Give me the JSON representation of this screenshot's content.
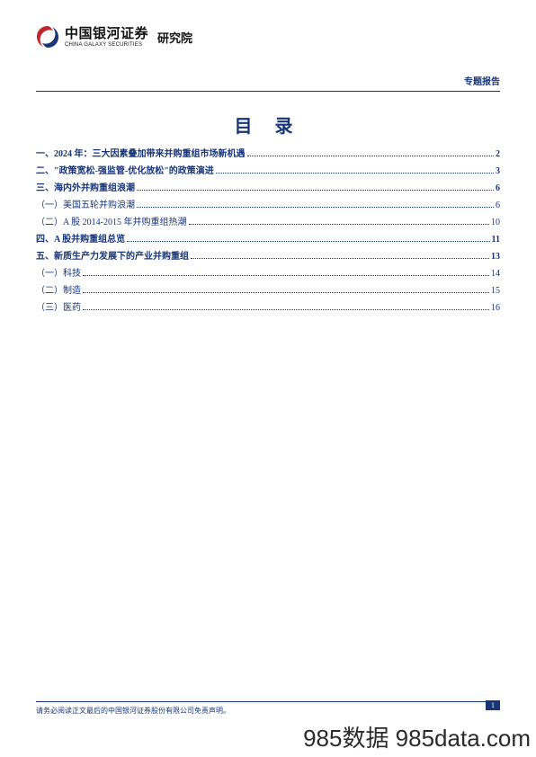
{
  "header": {
    "logo_cn": "中国银河证券",
    "logo_en": "CHINA GALAXY SECURITIES",
    "institute": "研究院",
    "report_type": "专题报告"
  },
  "toc": {
    "title": "目 录",
    "entries": [
      {
        "level": 1,
        "label": "一、2024 年：三大因素叠加带来并购重组市场新机遇",
        "page": "2"
      },
      {
        "level": 1,
        "label": "二、\"政策宽松-强监管-优化放松\"的政策演进",
        "page": "3"
      },
      {
        "level": 1,
        "label": "三、海内外并购重组浪潮",
        "page": "6"
      },
      {
        "level": 2,
        "label": "（一）美国五轮并购浪潮",
        "page": "6"
      },
      {
        "level": 2,
        "label": "（二）A 股 2014-2015 年并购重组热潮",
        "page": "10"
      },
      {
        "level": 1,
        "label": "四、A 股并购重组总览",
        "page": "11"
      },
      {
        "level": 1,
        "label": "五、新质生产力发展下的产业并购重组",
        "page": "13"
      },
      {
        "level": 2,
        "label": "（一）科技",
        "page": "14"
      },
      {
        "level": 2,
        "label": "（二）制造",
        "page": "15"
      },
      {
        "level": 2,
        "label": "（三）医药",
        "page": "16"
      }
    ]
  },
  "footer": {
    "disclaimer": "请务必阅读正文最后的中国银河证券股份有限公司免责声明。",
    "page_number": "1"
  },
  "watermark": "985数据 985data.com",
  "colors": {
    "brand_blue": "#18357a",
    "brand_red": "#c0272d",
    "text_black": "#111111",
    "background": "#ffffff"
  }
}
